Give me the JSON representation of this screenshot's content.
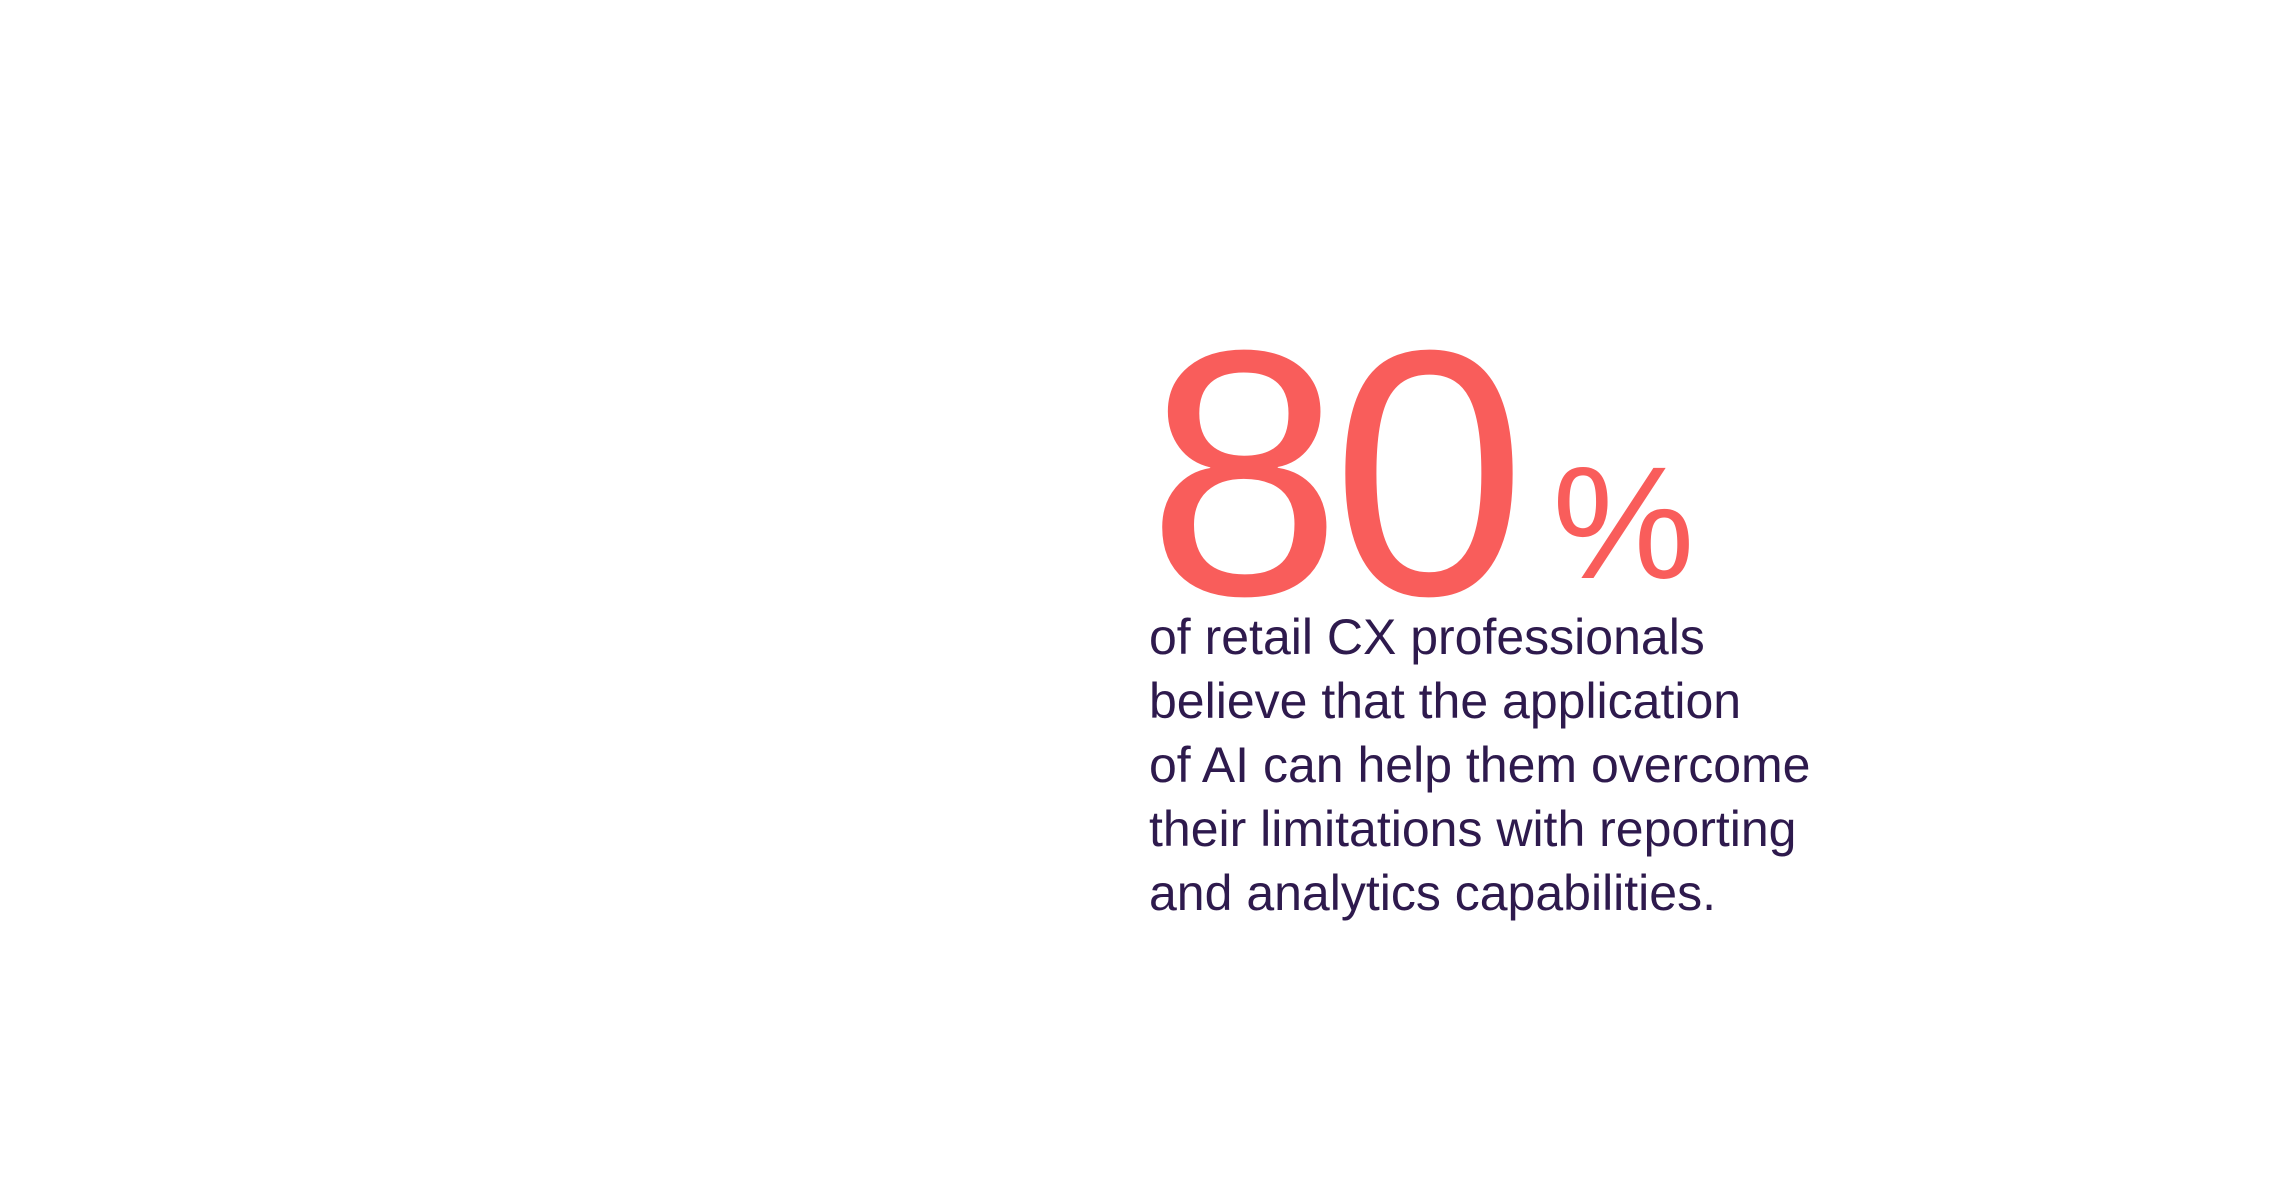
{
  "statistic": {
    "value": "80",
    "percent_sign": "%",
    "description_lines": [
      "of retail CX professionals",
      "believe that the application",
      "of AI can help them overcome",
      "their limitations with reporting",
      "and analytics capabilities."
    ]
  },
  "colors": {
    "accent": "#F95D5B",
    "text": "#2E1A4D",
    "background": "#FFFFFF"
  }
}
